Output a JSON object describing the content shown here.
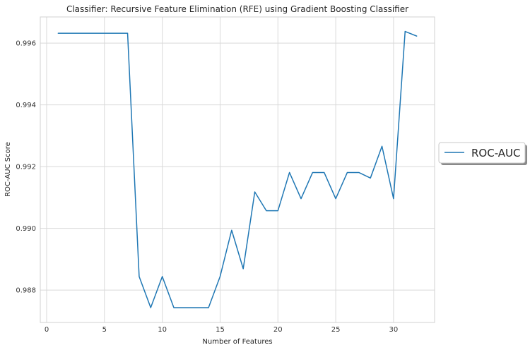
{
  "chart_data": {
    "type": "line",
    "title": "Classifier: Recursive Feature Elimination (RFE) using Gradient Boosting Classifier",
    "xlabel": "Number of Features",
    "ylabel": "ROC-AUC Score",
    "xlim": [
      -0.55,
      33.55
    ],
    "ylim": [
      0.98695,
      0.99685
    ],
    "xticks": [
      0,
      5,
      10,
      15,
      20,
      25,
      30
    ],
    "yticks": [
      0.988,
      0.99,
      0.992,
      0.994,
      0.996
    ],
    "ytick_labels": [
      "0.988",
      "0.990",
      "0.992",
      "0.994",
      "0.996"
    ],
    "grid": true,
    "legend_position": "outside-right",
    "series": [
      {
        "name": "ROC-AUC",
        "color": "#1f77b4",
        "x": [
          1,
          2,
          3,
          4,
          5,
          6,
          7,
          8,
          9,
          10,
          11,
          12,
          13,
          14,
          15,
          16,
          17,
          18,
          19,
          20,
          21,
          22,
          23,
          24,
          25,
          26,
          27,
          28,
          29,
          30,
          31,
          32
        ],
        "y": [
          0.99632,
          0.99632,
          0.99632,
          0.99632,
          0.99632,
          0.99632,
          0.99632,
          0.98844,
          0.98743,
          0.98844,
          0.98743,
          0.98743,
          0.98743,
          0.98743,
          0.98844,
          0.98994,
          0.98869,
          0.99118,
          0.99057,
          0.99057,
          0.99181,
          0.99096,
          0.99181,
          0.99181,
          0.99096,
          0.99181,
          0.99181,
          0.99163,
          0.99266,
          0.99096,
          0.99638,
          0.99623
        ]
      }
    ]
  }
}
